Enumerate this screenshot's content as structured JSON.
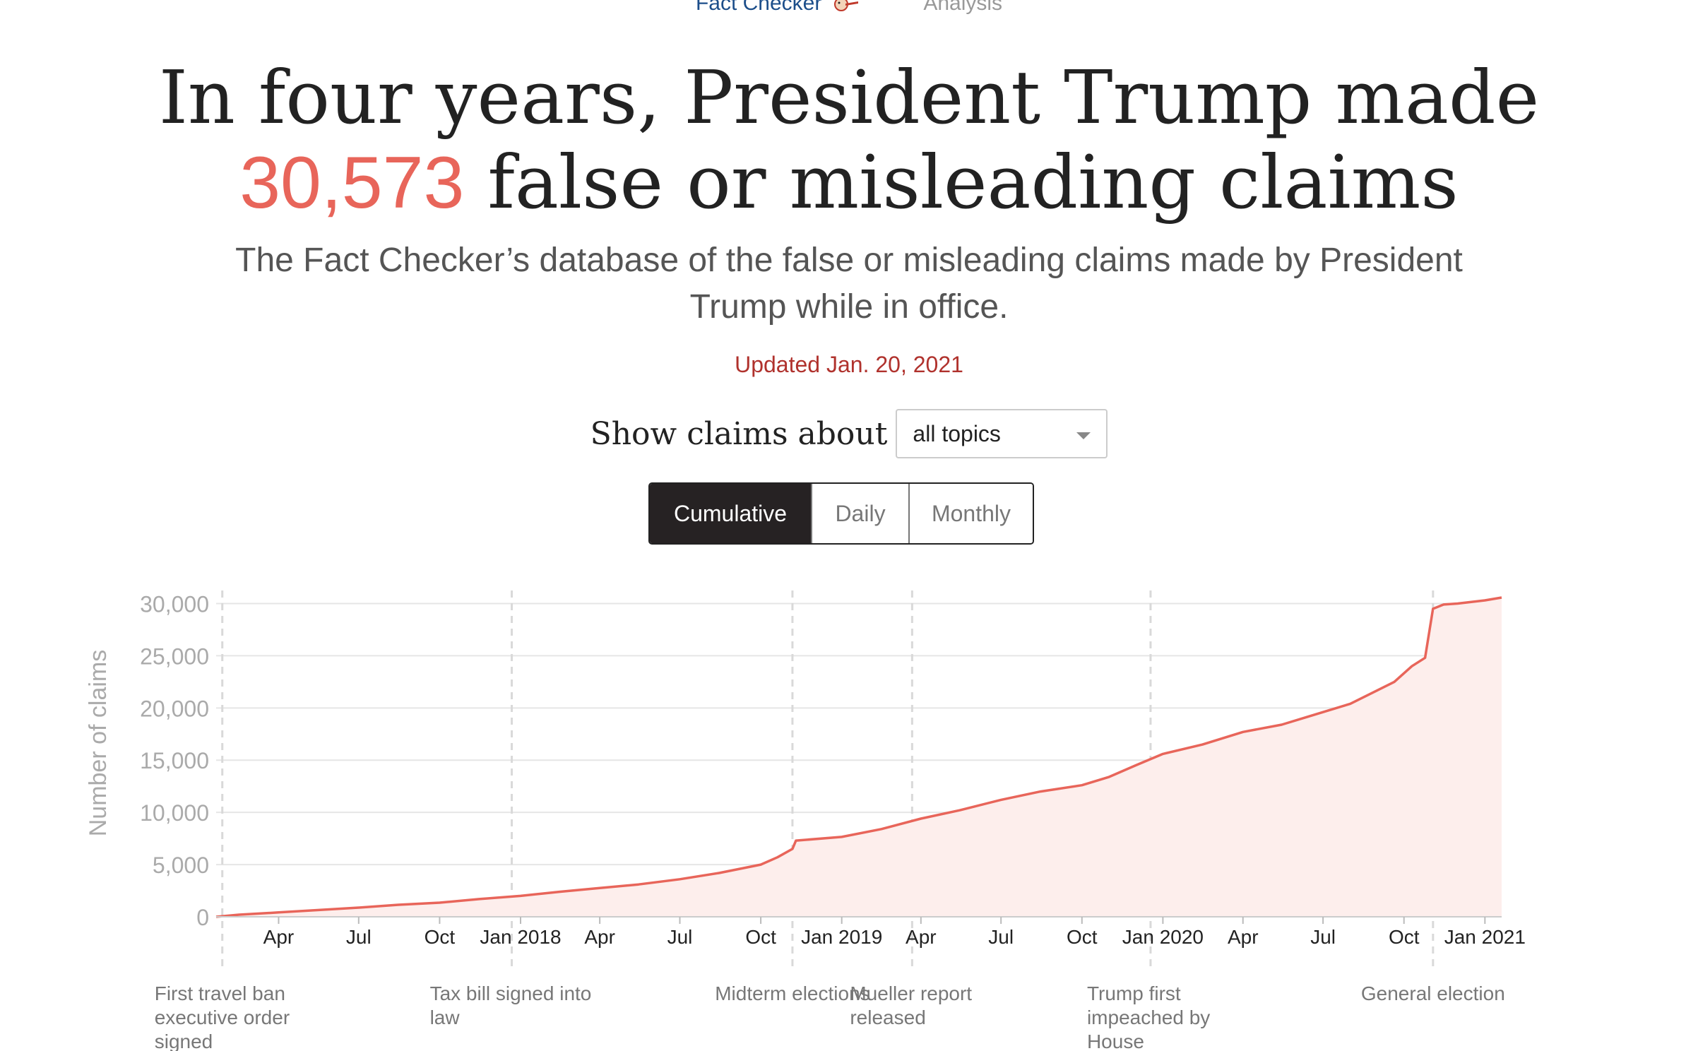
{
  "nav": {
    "kicker": "Fact Checker",
    "section": "Analysis",
    "mascot_icon": "pinocchio-icon"
  },
  "headline": {
    "before": "In four years, President Trump made",
    "count": "30,573",
    "after": "false or misleading claims"
  },
  "dek": "The Fact Checker’s database of the false or misleading claims made by President Trump while in office.",
  "updated": "Updated Jan. 20, 2021",
  "filter": {
    "label": "Show claims about",
    "selected": "all topics"
  },
  "view_toggle": {
    "options": [
      "Cumulative",
      "Daily",
      "Monthly"
    ],
    "active": "Cumulative"
  },
  "colors": {
    "accent": "#e8655a",
    "area_fill": "#fdeeec",
    "updated_text": "#b0322d",
    "active_toggle": "#262223"
  },
  "chart_data": {
    "type": "area",
    "title": "",
    "ylabel": "Number of claims",
    "xlabel": "",
    "ylim": [
      0,
      30573
    ],
    "grid": true,
    "yticks": [
      0,
      5000,
      10000,
      15000,
      20000,
      25000,
      30000
    ],
    "ytick_labels": [
      "0",
      "5,000",
      "10,000",
      "15,000",
      "20,000",
      "25,000",
      "30,000"
    ],
    "xticks": [
      {
        "date": "2017-04-01",
        "label": "Apr"
      },
      {
        "date": "2017-07-01",
        "label": "Jul"
      },
      {
        "date": "2017-10-01",
        "label": "Oct"
      },
      {
        "date": "2018-01-01",
        "label": "Jan 2018"
      },
      {
        "date": "2018-04-01",
        "label": "Apr"
      },
      {
        "date": "2018-07-01",
        "label": "Jul"
      },
      {
        "date": "2018-10-01",
        "label": "Oct"
      },
      {
        "date": "2019-01-01",
        "label": "Jan 2019"
      },
      {
        "date": "2019-04-01",
        "label": "Apr"
      },
      {
        "date": "2019-07-01",
        "label": "Jul"
      },
      {
        "date": "2019-10-01",
        "label": "Oct"
      },
      {
        "date": "2020-01-01",
        "label": "Jan 2020"
      },
      {
        "date": "2020-04-01",
        "label": "Apr"
      },
      {
        "date": "2020-07-01",
        "label": "Jul"
      },
      {
        "date": "2020-10-01",
        "label": "Oct"
      },
      {
        "date": "2021-01-01",
        "label": "Jan 2021"
      }
    ],
    "annotations": [
      {
        "date": "2017-01-27",
        "label": "First travel ban executive order signed",
        "lines": [
          "First travel ban",
          "executive order",
          "signed"
        ],
        "align": "left"
      },
      {
        "date": "2017-12-22",
        "label": "Tax bill signed into law",
        "lines": [
          "Tax bill signed into",
          "law"
        ],
        "align": "left"
      },
      {
        "date": "2018-11-06",
        "label": "Midterm elections",
        "lines": [
          "Midterm elections"
        ],
        "align": "center"
      },
      {
        "date": "2019-03-22",
        "label": "Mueller report released",
        "lines": [
          "Mueller report",
          "released"
        ],
        "align": "left"
      },
      {
        "date": "2019-12-18",
        "label": "Trump first impeached by House",
        "lines": [
          "Trump first",
          "impeached by",
          "House"
        ],
        "align": "left"
      },
      {
        "date": "2020-11-03",
        "label": "General election",
        "lines": [
          "General election"
        ],
        "align": "center"
      }
    ],
    "series": [
      {
        "x": [
          "2017-01-20",
          "2017-02-15",
          "2017-04-01",
          "2017-05-15",
          "2017-07-01",
          "2017-08-15",
          "2017-10-01",
          "2017-11-15",
          "2018-01-01",
          "2018-02-15",
          "2018-04-01",
          "2018-05-15",
          "2018-07-01",
          "2018-08-15",
          "2018-10-01",
          "2018-10-20",
          "2018-11-06",
          "2018-11-10",
          "2019-01-01",
          "2019-02-15",
          "2019-04-01",
          "2019-05-15",
          "2019-07-01",
          "2019-08-15",
          "2019-10-01",
          "2019-11-01",
          "2019-12-01",
          "2020-01-01",
          "2020-02-15",
          "2020-04-01",
          "2020-05-15",
          "2020-07-01",
          "2020-08-01",
          "2020-09-01",
          "2020-09-20",
          "2020-10-10",
          "2020-10-25",
          "2020-11-03",
          "2020-11-15",
          "2020-12-01",
          "2021-01-01",
          "2021-01-20"
        ],
        "y": [
          0,
          200,
          420,
          640,
          880,
          1150,
          1350,
          1700,
          2000,
          2400,
          2750,
          3100,
          3600,
          4200,
          5000,
          5700,
          6500,
          7300,
          7650,
          8400,
          9400,
          10200,
          11200,
          12000,
          12600,
          13400,
          14500,
          15600,
          16500,
          17700,
          18400,
          19600,
          20400,
          21700,
          22500,
          24000,
          24800,
          29500,
          29900,
          30000,
          30300,
          30573
        ]
      }
    ]
  }
}
